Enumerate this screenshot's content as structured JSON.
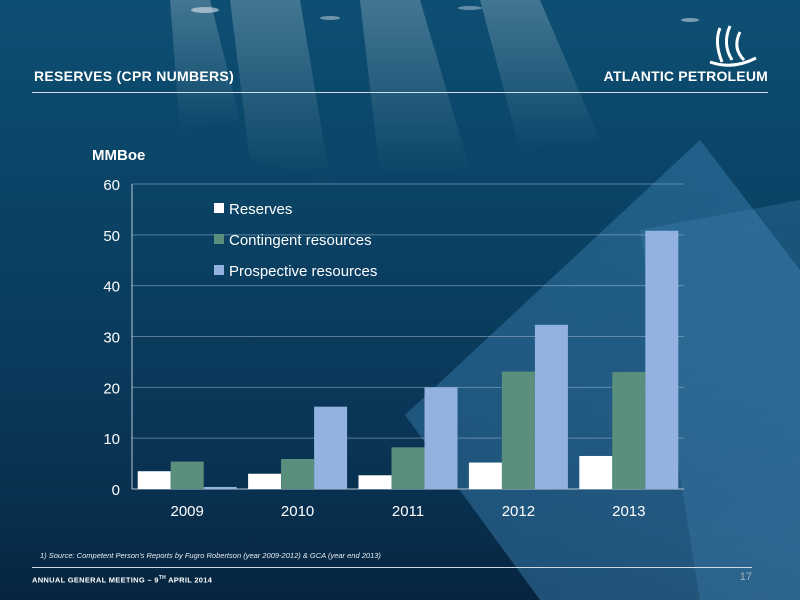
{
  "header": {
    "title": "RESERVES (CPR NUMBERS)",
    "company": "ATLANTIC PETROLEUM"
  },
  "chart_data": {
    "type": "bar",
    "unit_label": "MMBoe",
    "categories": [
      "2009",
      "2010",
      "2011",
      "2012",
      "2013"
    ],
    "series": [
      {
        "name": "Reserves",
        "values": [
          3.5,
          3.0,
          2.7,
          5.2,
          6.5
        ],
        "color": "#ffffff"
      },
      {
        "name": "Contingent resources",
        "values": [
          5.4,
          5.9,
          8.2,
          23.1,
          23.0
        ],
        "color": "#5a8f7e"
      },
      {
        "name": "Prospective resources",
        "values": [
          0.4,
          16.2,
          20.0,
          32.3,
          50.8
        ],
        "color": "#93b2e0"
      }
    ],
    "ylim": [
      0,
      60
    ],
    "yticks": [
      0,
      10,
      20,
      30,
      40,
      50,
      60
    ],
    "grid": true,
    "legend_position": "top-left"
  },
  "footnote": "1) Source: Competent Person's Reports  by Fugro Robertson (year 2009-2012) & GCA (year end 2013)",
  "footer": {
    "event_prefix": "ANNUAL GENERAL MEETING – 9",
    "event_sup": "TH",
    "event_suffix": " APRIL 2014",
    "page_number": "17"
  }
}
